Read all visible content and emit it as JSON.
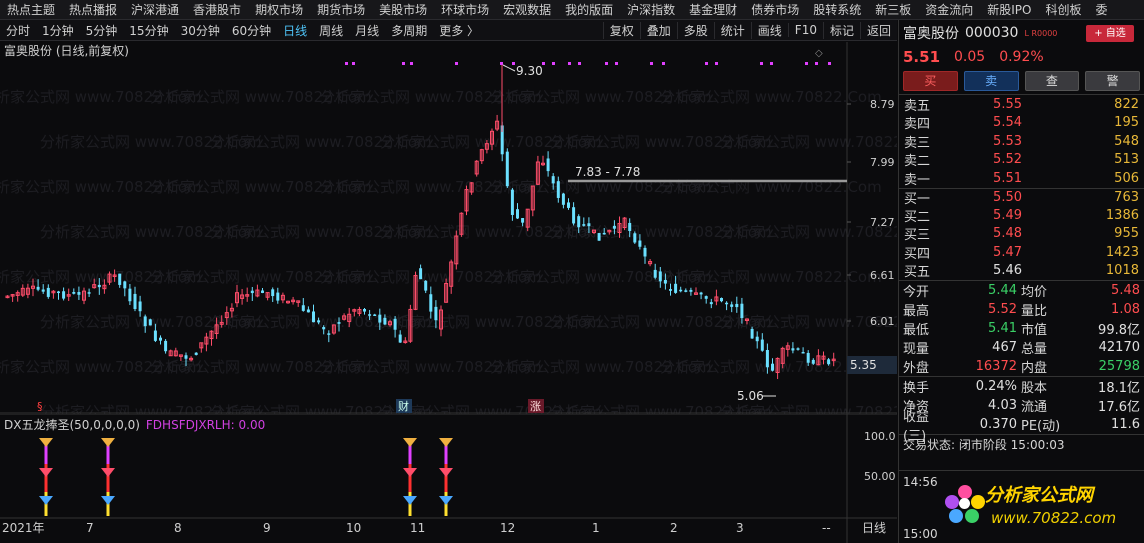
{
  "topnav": [
    "热点主题",
    "热点播报",
    "沪深港通",
    "香港股市",
    "期权市场",
    "期货市场",
    "美股市场",
    "环球市场",
    "宏观数据",
    "我的版面",
    "沪深指数",
    "基金理财",
    "债券市场",
    "股转系统",
    "新三板",
    "资金流向",
    "新股IPO",
    "科创板",
    "委"
  ],
  "toolbar": {
    "left": [
      "分时",
      "1分钟",
      "5分钟",
      "15分钟",
      "30分钟",
      "60分钟",
      "日线",
      "周线",
      "月线",
      "多周期",
      "更多 〉"
    ],
    "active": "日线",
    "right": [
      "复权",
      "叠加",
      "多股",
      "统计",
      "画线",
      "F10",
      "标记",
      "返回"
    ]
  },
  "chart": {
    "title": "富奥股份 (日线,前复权)",
    "yticks": [
      "8.79",
      "7.99",
      "7.27",
      "6.61",
      "6.01"
    ],
    "current_price_label": "5.35",
    "high_label": "9.30",
    "low_label": "5.06",
    "range_label": "7.83 - 7.78",
    "event_markers": [
      "§",
      "财",
      "涨"
    ],
    "xlabels": [
      "2021年",
      "7",
      "8",
      "9",
      "10",
      "11",
      "12",
      "1",
      "2",
      "3",
      "--"
    ],
    "period_label": "日线",
    "watermark": "分析家公式网 www.70822.Com"
  },
  "indicator": {
    "name": "DX五龙捧圣(50,0,0,0,0)",
    "value": "FDHSFDJXRLH: 0.00",
    "yticks": [
      "100.0",
      "50.00"
    ]
  },
  "stock": {
    "name": "富奥股份",
    "code": "000030",
    "tag": "L R0000",
    "add_btn": "+ 自选",
    "price": "5.51",
    "change": "0.05",
    "pct": "0.92%"
  },
  "trade_btns": [
    "买",
    "卖",
    "查",
    "警"
  ],
  "orderbook": [
    {
      "label": "卖五",
      "price": "5.55",
      "vol": "822",
      "cls": "up"
    },
    {
      "label": "卖四",
      "price": "5.54",
      "vol": "195",
      "cls": "up"
    },
    {
      "label": "卖三",
      "price": "5.53",
      "vol": "548",
      "cls": "up"
    },
    {
      "label": "卖二",
      "price": "5.52",
      "vol": "513",
      "cls": "up"
    },
    {
      "label": "卖一",
      "price": "5.51",
      "vol": "506",
      "cls": "up"
    },
    {
      "label": "买一",
      "price": "5.50",
      "vol": "763",
      "cls": "up"
    },
    {
      "label": "买二",
      "price": "5.49",
      "vol": "1386",
      "cls": "up"
    },
    {
      "label": "买三",
      "price": "5.48",
      "vol": "955",
      "cls": "up"
    },
    {
      "label": "买四",
      "price": "5.47",
      "vol": "1423",
      "cls": "up"
    },
    {
      "label": "买五",
      "price": "5.46",
      "vol": "1018",
      "cls": "wh"
    }
  ],
  "quotes1": [
    {
      "k1": "今开",
      "v1": "5.44",
      "c1": "dn",
      "k2": "均价",
      "v2": "5.48",
      "c2": "up"
    },
    {
      "k1": "最高",
      "v1": "5.52",
      "c1": "up",
      "k2": "量比",
      "v2": "1.08",
      "c2": "up"
    },
    {
      "k1": "最低",
      "v1": "5.41",
      "c1": "dn",
      "k2": "市值",
      "v2": "99.8亿",
      "c2": "wh"
    },
    {
      "k1": "现量",
      "v1": "467",
      "c1": "wh",
      "k2": "总量",
      "v2": "42170",
      "c2": "wh"
    },
    {
      "k1": "外盘",
      "v1": "16372",
      "c1": "up",
      "k2": "内盘",
      "v2": "25798",
      "c2": "dn"
    }
  ],
  "quotes2": [
    {
      "k1": "换手",
      "v1": "0.24%",
      "c1": "wh",
      "k2": "股本",
      "v2": "18.1亿",
      "c2": "wh"
    },
    {
      "k1": "净资",
      "v1": "4.03",
      "c1": "wh",
      "k2": "流通",
      "v2": "17.6亿",
      "c2": "wh"
    },
    {
      "k1": "收益(三)",
      "v1": "0.370",
      "c1": "wh",
      "k2": "PE(动)",
      "v2": "11.6",
      "c2": "wh"
    }
  ],
  "status": "交易状态: 闭市阶段 15:00:03",
  "mini": {
    "t1": "14:56",
    "t2": "15:00"
  },
  "logo": {
    "brand": "分析家公式网",
    "url": "www.70822.com"
  },
  "chart_data": {
    "type": "candlestick",
    "y_axis_ticks": [
      8.79,
      7.99,
      7.27,
      6.61,
      6.01
    ],
    "high": 9.3,
    "low": 5.06,
    "last": 5.35,
    "months": [
      "2021年",
      "7",
      "8",
      "9",
      "10",
      "11",
      "12",
      "1",
      "2",
      "3"
    ]
  }
}
